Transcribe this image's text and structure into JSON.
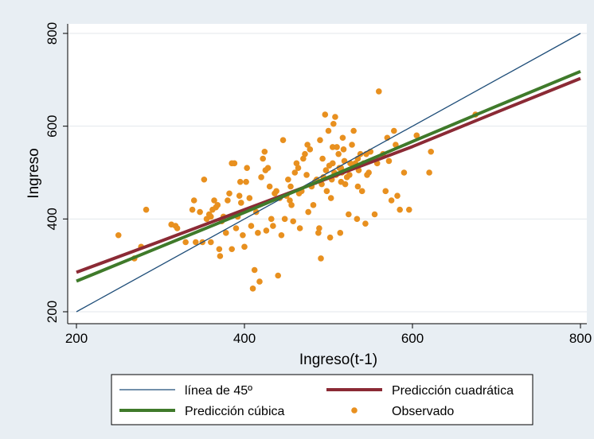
{
  "chart_data": {
    "type": "scatter",
    "xlabel": "Ingreso(t-1)",
    "ylabel": "Ingreso",
    "xlim": [
      200,
      800
    ],
    "ylim": [
      200,
      800
    ],
    "x_ticks": [
      "200",
      "400",
      "600",
      "800"
    ],
    "y_ticks": [
      "200",
      "400",
      "600",
      "800"
    ],
    "grid": "horizontal",
    "legend_position": "bottom",
    "legend": [
      {
        "label": "línea de 45º",
        "kind": "line",
        "color": "#1f4e79"
      },
      {
        "label": "Predicción cuadrática",
        "kind": "line",
        "color": "#8b2a35"
      },
      {
        "label": "Predicción cúbica",
        "kind": "line",
        "color": "#3f7a2a"
      },
      {
        "label": "Observado",
        "kind": "marker",
        "color": "#e8901f"
      }
    ],
    "series": [
      {
        "name": "línea de 45º",
        "x": [
          200,
          800
        ],
        "y": [
          200,
          800
        ]
      },
      {
        "name": "Predicción cuadrática",
        "x": [
          200,
          300,
          400,
          500,
          600,
          700,
          800
        ],
        "y": [
          285,
          352,
          420,
          488,
          556,
          630,
          703
        ]
      },
      {
        "name": "Predicción cúbica",
        "x": [
          200,
          300,
          400,
          500,
          600,
          700,
          800
        ],
        "y": [
          266,
          340,
          414,
          490,
          567,
          643,
          718
        ]
      },
      {
        "name": "Observado",
        "points": [
          [
            250,
            365
          ],
          [
            269,
            315
          ],
          [
            277,
            340
          ],
          [
            283,
            420
          ],
          [
            313,
            388
          ],
          [
            318,
            385
          ],
          [
            320,
            380
          ],
          [
            330,
            350
          ],
          [
            338,
            420
          ],
          [
            340,
            440
          ],
          [
            342,
            350
          ],
          [
            350,
            350
          ],
          [
            352,
            485
          ],
          [
            355,
            400
          ],
          [
            358,
            410
          ],
          [
            360,
            350
          ],
          [
            362,
            420
          ],
          [
            364,
            440
          ],
          [
            366,
            425
          ],
          [
            368,
            430
          ],
          [
            370,
            335
          ],
          [
            371,
            320
          ],
          [
            373,
            395
          ],
          [
            378,
            370
          ],
          [
            380,
            440
          ],
          [
            382,
            455
          ],
          [
            385,
            335
          ],
          [
            388,
            520
          ],
          [
            390,
            380
          ],
          [
            392,
            405
          ],
          [
            394,
            450
          ],
          [
            396,
            435
          ],
          [
            398,
            365
          ],
          [
            400,
            340
          ],
          [
            402,
            480
          ],
          [
            403,
            510
          ],
          [
            406,
            445
          ],
          [
            408,
            385
          ],
          [
            410,
            250
          ],
          [
            412,
            290
          ],
          [
            414,
            415
          ],
          [
            416,
            370
          ],
          [
            418,
            265
          ],
          [
            420,
            490
          ],
          [
            422,
            530
          ],
          [
            424,
            545
          ],
          [
            426,
            375
          ],
          [
            428,
            510
          ],
          [
            430,
            470
          ],
          [
            432,
            400
          ],
          [
            434,
            385
          ],
          [
            436,
            455
          ],
          [
            438,
            460
          ],
          [
            440,
            278
          ],
          [
            442,
            445
          ],
          [
            444,
            365
          ],
          [
            446,
            570
          ],
          [
            448,
            400
          ],
          [
            450,
            450
          ],
          [
            452,
            485
          ],
          [
            454,
            440
          ],
          [
            456,
            430
          ],
          [
            458,
            395
          ],
          [
            460,
            500
          ],
          [
            462,
            520
          ],
          [
            464,
            510
          ],
          [
            466,
            380
          ],
          [
            468,
            460
          ],
          [
            470,
            530
          ],
          [
            472,
            540
          ],
          [
            474,
            495
          ],
          [
            475,
            560
          ],
          [
            476,
            415
          ],
          [
            478,
            550
          ],
          [
            480,
            470
          ],
          [
            482,
            430
          ],
          [
            484,
            480
          ],
          [
            486,
            485
          ],
          [
            488,
            370
          ],
          [
            489,
            380
          ],
          [
            490,
            570
          ],
          [
            491,
            315
          ],
          [
            492,
            475
          ],
          [
            493,
            530
          ],
          [
            494,
            490
          ],
          [
            496,
            625
          ],
          [
            497,
            505
          ],
          [
            498,
            460
          ],
          [
            500,
            590
          ],
          [
            501,
            515
          ],
          [
            502,
            360
          ],
          [
            503,
            445
          ],
          [
            504,
            485
          ],
          [
            505,
            555
          ],
          [
            506,
            605
          ],
          [
            507,
            500
          ],
          [
            508,
            620
          ],
          [
            509,
            495
          ],
          [
            510,
            555
          ],
          [
            512,
            540
          ],
          [
            513,
            510
          ],
          [
            514,
            370
          ],
          [
            515,
            480
          ],
          [
            516,
            500
          ],
          [
            517,
            575
          ],
          [
            518,
            550
          ],
          [
            519,
            525
          ],
          [
            520,
            475
          ],
          [
            522,
            490
          ],
          [
            524,
            410
          ],
          [
            525,
            495
          ],
          [
            526,
            520
          ],
          [
            528,
            560
          ],
          [
            530,
            590
          ],
          [
            532,
            520
          ],
          [
            534,
            400
          ],
          [
            535,
            470
          ],
          [
            536,
            505
          ],
          [
            538,
            540
          ],
          [
            540,
            460
          ],
          [
            542,
            520
          ],
          [
            544,
            390
          ],
          [
            546,
            495
          ],
          [
            548,
            500
          ],
          [
            550,
            545
          ],
          [
            555,
            410
          ],
          [
            558,
            520
          ],
          [
            560,
            675
          ],
          [
            565,
            540
          ],
          [
            568,
            460
          ],
          [
            570,
            575
          ],
          [
            572,
            525
          ],
          [
            575,
            440
          ],
          [
            578,
            590
          ],
          [
            580,
            560
          ],
          [
            582,
            450
          ],
          [
            585,
            420
          ],
          [
            590,
            500
          ],
          [
            596,
            420
          ],
          [
            605,
            580
          ],
          [
            620,
            500
          ],
          [
            622,
            545
          ],
          [
            675,
            625
          ],
          [
            385,
            520
          ],
          [
            395,
            480
          ],
          [
            425,
            505
          ],
          [
            455,
            470
          ],
          [
            465,
            455
          ],
          [
            505,
            520
          ],
          [
            515,
            510
          ],
          [
            535,
            530
          ],
          [
            545,
            540
          ],
          [
            360,
            405
          ],
          [
            375,
            405
          ],
          [
            347,
            415
          ]
        ]
      }
    ]
  }
}
